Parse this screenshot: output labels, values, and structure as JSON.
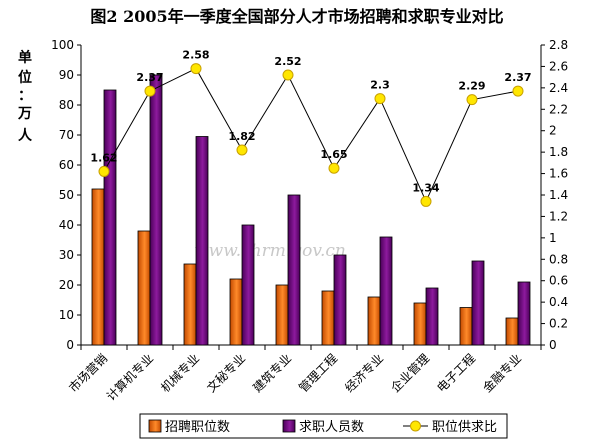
{
  "chart_data": {
    "type": "bar",
    "title": "图2 2005年一季度全国部分人才市场招聘和求职专业对比",
    "ylabel_left": "单位：万人",
    "ylim_left": [
      0,
      100
    ],
    "yticks_left": [
      "0",
      "10",
      "20",
      "30",
      "40",
      "50",
      "60",
      "70",
      "80",
      "90",
      "100"
    ],
    "ylim_right": [
      0,
      2.8
    ],
    "yticks_right": [
      "0",
      "0.2",
      "0.4",
      "0.6",
      "0.8",
      "1",
      "1.2",
      "1.4",
      "1.6",
      "1.8",
      "2",
      "2.2",
      "2.4",
      "2.6",
      "2.8"
    ],
    "categories": [
      "市场营销",
      "计算机专业",
      "机械专业",
      "文秘专业",
      "建筑专业",
      "管理工程",
      "经济专业",
      "企业管理",
      "电子工程",
      "金融专业"
    ],
    "series": [
      {
        "name": "招聘职位数",
        "kind": "bar",
        "color": "#F26A10",
        "values": [
          52,
          38,
          27,
          22,
          20,
          18,
          16,
          14,
          12.5,
          9
        ]
      },
      {
        "name": "求职人员数",
        "kind": "bar",
        "color": "#7A0F86",
        "values": [
          85,
          90,
          69.5,
          40,
          50,
          30,
          36,
          19,
          28,
          21
        ]
      },
      {
        "name": "职位供求比",
        "kind": "line",
        "axis": "right",
        "color": "#FFEA00",
        "values": [
          1.62,
          2.37,
          2.58,
          1.82,
          2.52,
          1.65,
          2.3,
          1.34,
          2.29,
          2.37
        ],
        "labels": [
          "1.62",
          "2.37",
          "2.58",
          "1.82",
          "2.52",
          "1.65",
          "2.3",
          "1.34",
          "2.29",
          "2.37"
        ]
      }
    ],
    "grid": false,
    "legend": "bottom",
    "watermark": "www.chrm.gov.cn"
  }
}
